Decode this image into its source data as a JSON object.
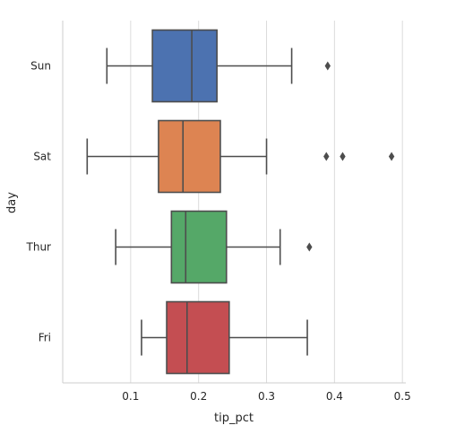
{
  "chart_data": {
    "type": "boxplot",
    "orientation": "horizontal",
    "xlabel": "tip_pct",
    "ylabel": "day",
    "xlim": [
      0.0,
      0.505
    ],
    "xticks": [
      "0.1",
      "0.2",
      "0.3",
      "0.4",
      "0.5"
    ],
    "xtick_values": [
      0.1,
      0.2,
      0.3,
      0.4,
      0.5
    ],
    "grid": "vertical",
    "categories": [
      "Sun",
      "Sat",
      "Thur",
      "Fri"
    ],
    "series": [
      {
        "label": "Sun",
        "color": "#4c72b0",
        "whisker_low": 0.065,
        "q1": 0.132,
        "median": 0.19,
        "q3": 0.227,
        "whisker_high": 0.337,
        "outliers": [
          0.39
        ]
      },
      {
        "label": "Sat",
        "color": "#dd8452",
        "whisker_low": 0.036,
        "q1": 0.141,
        "median": 0.177,
        "q3": 0.232,
        "whisker_high": 0.3,
        "outliers": [
          0.388,
          0.412,
          0.484
        ]
      },
      {
        "label": "Thur",
        "color": "#55a868",
        "whisker_low": 0.078,
        "q1": 0.16,
        "median": 0.181,
        "q3": 0.241,
        "whisker_high": 0.32,
        "outliers": [
          0.363
        ]
      },
      {
        "label": "Fri",
        "color": "#c44e52",
        "whisker_low": 0.116,
        "q1": 0.153,
        "median": 0.183,
        "q3": 0.245,
        "whisker_high": 0.36,
        "outliers": []
      }
    ]
  }
}
